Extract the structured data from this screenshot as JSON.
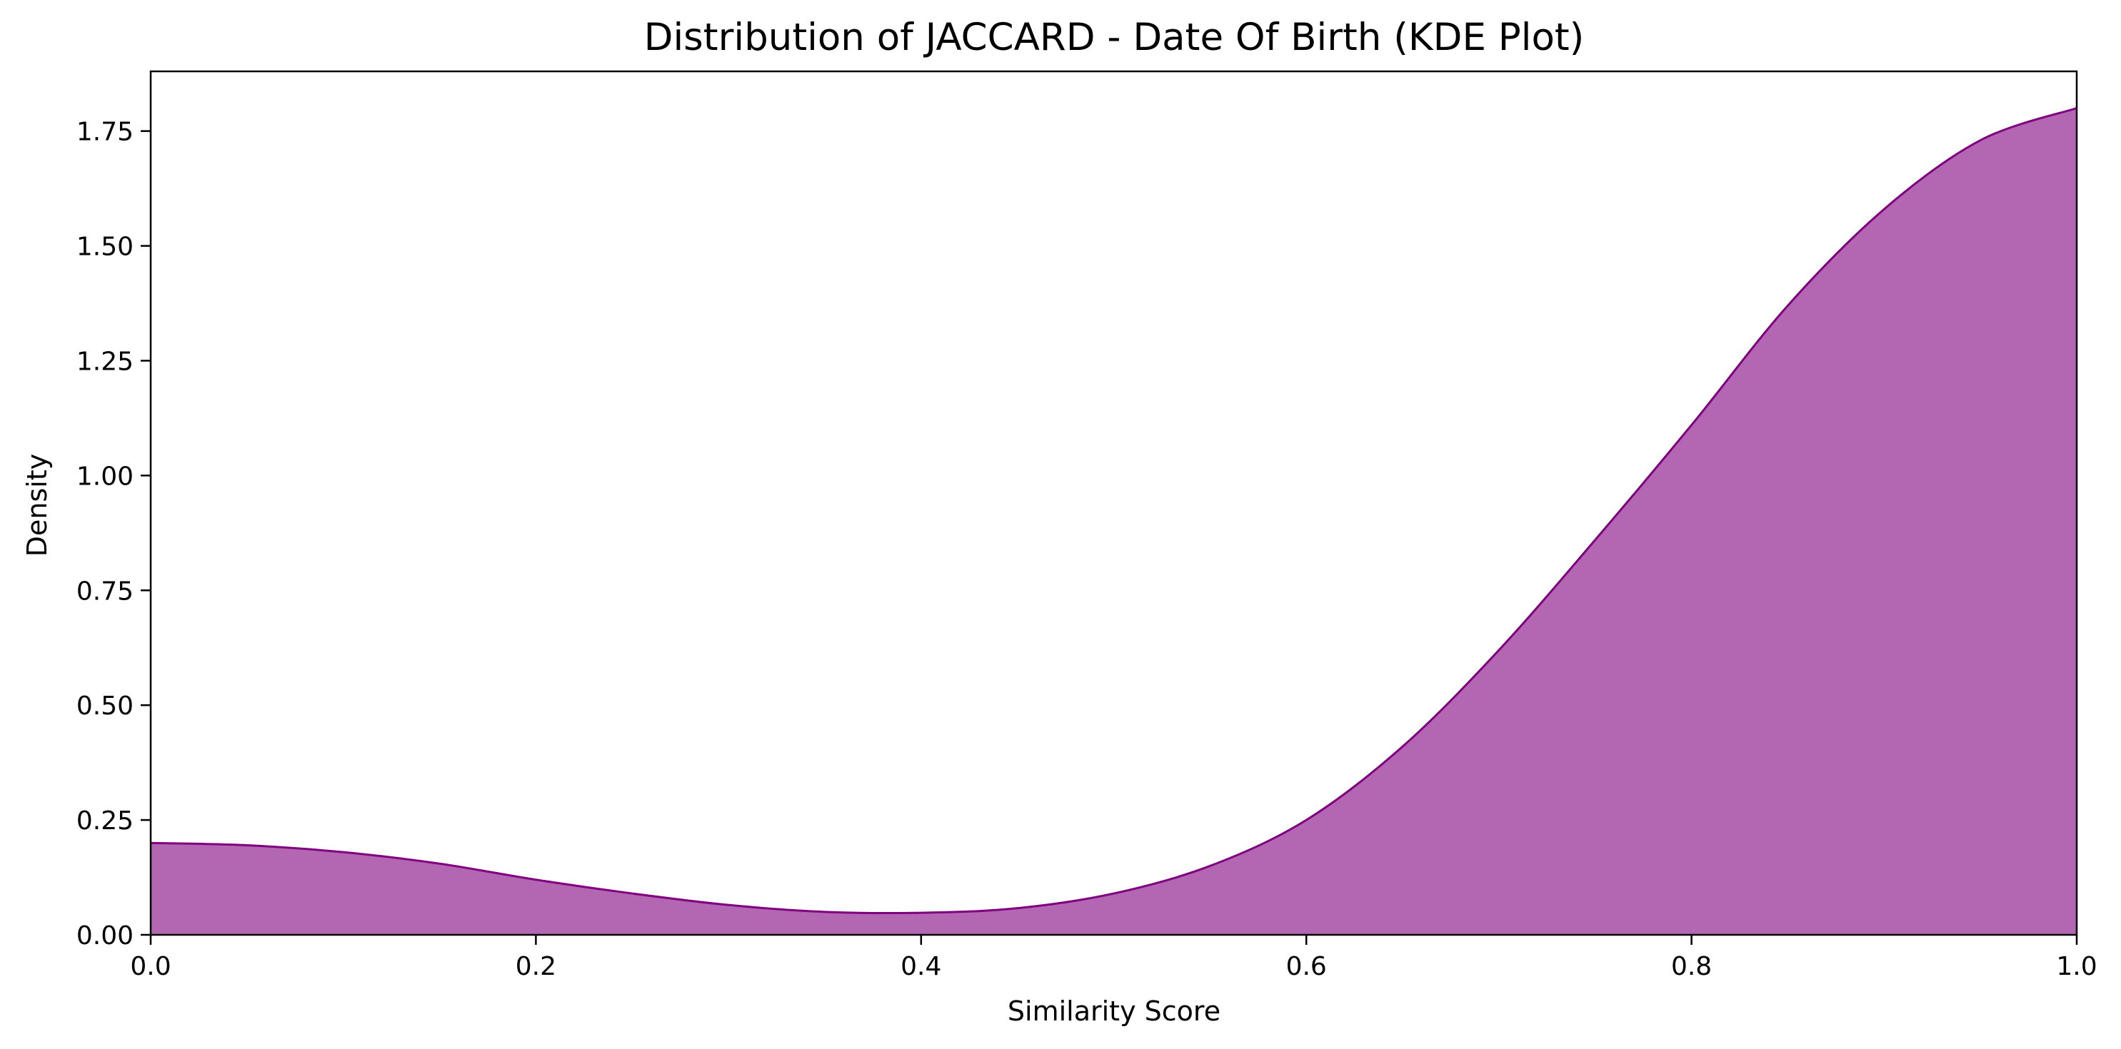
{
  "chart_data": {
    "type": "area",
    "title": "Distribution of JACCARD - Date Of Birth (KDE Plot)",
    "xlabel": "Similarity Score",
    "ylabel": "Density",
    "xlim": [
      0.0,
      1.0
    ],
    "ylim": [
      0.0,
      1.88
    ],
    "xticks": [
      0.0,
      0.2,
      0.4,
      0.6,
      0.8,
      1.0
    ],
    "xtick_labels": [
      "0.0",
      "0.2",
      "0.4",
      "0.6",
      "0.8",
      "1.0"
    ],
    "yticks": [
      0.0,
      0.25,
      0.5,
      0.75,
      1.0,
      1.25,
      1.5,
      1.75
    ],
    "ytick_labels": [
      "0.00",
      "0.25",
      "0.50",
      "0.75",
      "1.00",
      "1.25",
      "1.50",
      "1.75"
    ],
    "grid": false,
    "legend": "none",
    "series": [
      {
        "x": [
          0.0,
          0.05,
          0.1,
          0.15,
          0.2,
          0.25,
          0.3,
          0.35,
          0.4,
          0.45,
          0.5,
          0.55,
          0.6,
          0.65,
          0.7,
          0.75,
          0.8,
          0.85,
          0.9,
          0.95,
          1.0
        ],
        "y": [
          0.2,
          0.195,
          0.18,
          0.155,
          0.12,
          0.09,
          0.065,
          0.05,
          0.048,
          0.058,
          0.09,
          0.15,
          0.25,
          0.41,
          0.62,
          0.86,
          1.11,
          1.37,
          1.58,
          1.73,
          1.8
        ]
      }
    ],
    "colors": {
      "fill": "#b366b2",
      "line": "#800080"
    }
  }
}
